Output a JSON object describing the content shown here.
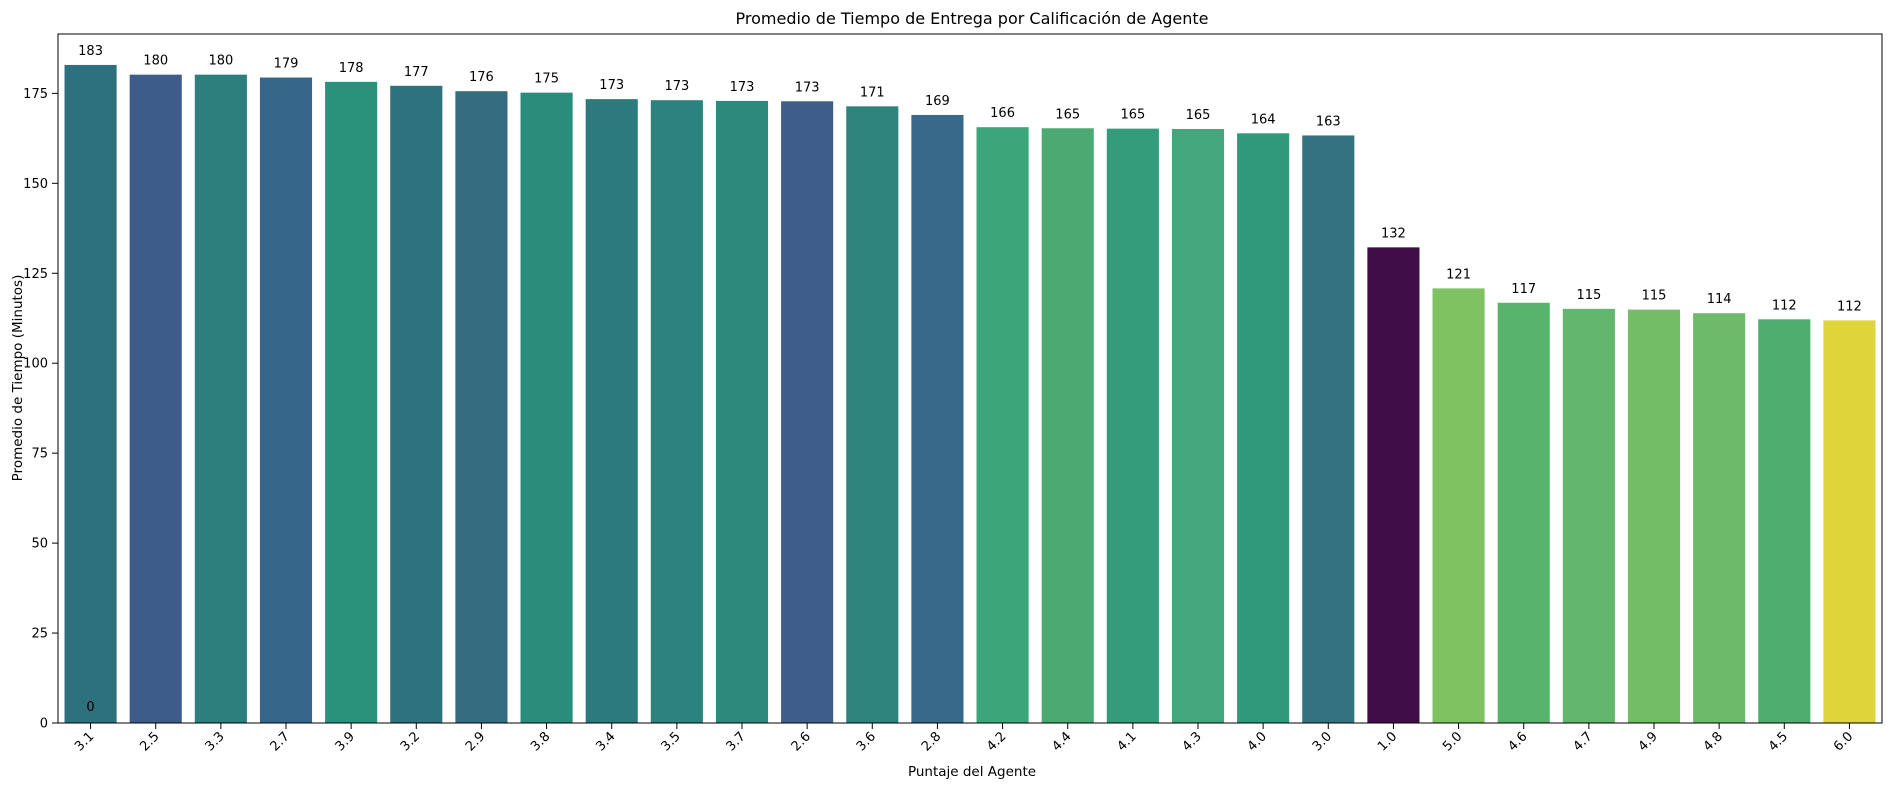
{
  "chart_data": {
    "type": "bar",
    "title": "Promedio de Tiempo de Entrega por Calificación de Agente",
    "xlabel": "Puntaje del Agente",
    "ylabel": "Promedio de Tiempo (Minutos)",
    "ylim": [
      0,
      191.5
    ],
    "yticks": [
      0,
      25,
      50,
      75,
      100,
      125,
      150,
      175
    ],
    "grid": false,
    "categories": [
      "3.1",
      "2.5",
      "3.3",
      "2.7",
      "3.9",
      "3.2",
      "2.9",
      "3.8",
      "3.4",
      "3.5",
      "3.7",
      "2.6",
      "3.6",
      "2.8",
      "4.2",
      "4.4",
      "4.1",
      "4.3",
      "4.0",
      "3.0",
      "1.0",
      "5.0",
      "4.6",
      "4.7",
      "4.9",
      "4.8",
      "4.5",
      "6.0"
    ],
    "values": [
      182.9,
      180.2,
      180.2,
      179.4,
      178.2,
      177.1,
      175.6,
      175.2,
      173.4,
      173.1,
      172.9,
      172.8,
      171.4,
      169.0,
      165.6,
      165.3,
      165.2,
      165.1,
      163.9,
      163.3,
      132.2,
      120.8,
      116.8,
      115.1,
      114.9,
      113.9,
      112.2,
      111.9
    ],
    "value_labels": [
      "183",
      "180",
      "180",
      "179",
      "178",
      "177",
      "176",
      "175",
      "173",
      "173",
      "173",
      "173",
      "171",
      "169",
      "166",
      "165",
      "165",
      "165",
      "164",
      "163",
      "132",
      "121",
      "117",
      "115",
      "115",
      "114",
      "112",
      "112"
    ],
    "annotations": [
      {
        "text": "0",
        "x": "3.1"
      }
    ],
    "colors": [
      "#2d707e",
      "#3e5c89",
      "#2c7f7d",
      "#37668b",
      "#2a927a",
      "#2d727e",
      "#356c80",
      "#2a8c7b",
      "#2d7a7e",
      "#2c827d",
      "#2d897c",
      "#3e5e89",
      "#2d847c",
      "#37698a",
      "#3ca67a",
      "#4aaa72",
      "#349c7b",
      "#43a67d",
      "#31997b",
      "#35727f",
      "#400d48",
      "#7ec262",
      "#58b46c",
      "#63b76c",
      "#72bd65",
      "#6dbb6a",
      "#4fae6f",
      "#e0d43b"
    ]
  }
}
